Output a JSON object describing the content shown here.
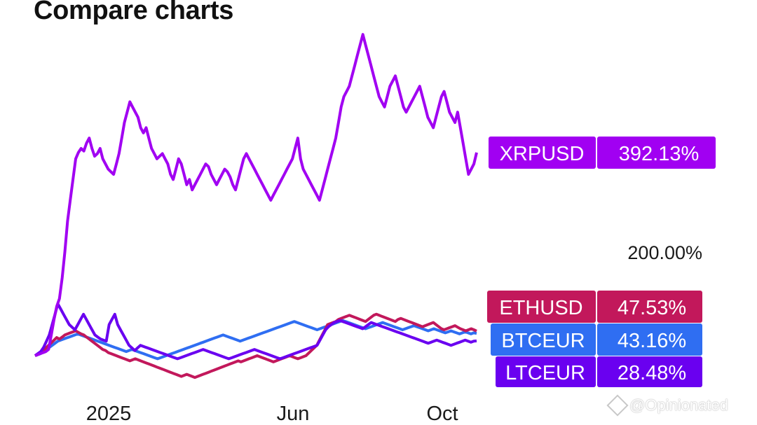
{
  "header": {
    "title": "Compare charts"
  },
  "watermark": {
    "text": "@Opinionated"
  },
  "chart_data": {
    "type": "line",
    "title": "Compare charts",
    "x_ticks": [
      "2025",
      "Jun",
      "Oct"
    ],
    "gridline_label": "200.00%",
    "ylabel": "",
    "xlabel": "",
    "series": [
      {
        "name": "XRPUSD",
        "last_label": "392.13%",
        "color": "#a100f2",
        "values": [
          0,
          2,
          4,
          6,
          8,
          12,
          40,
          70,
          95,
          110,
          150,
          200,
          260,
          300,
          340,
          380,
          392,
          400,
          395,
          410,
          420,
          400,
          385,
          390,
          400,
          380,
          370,
          360,
          355,
          350,
          370,
          390,
          420,
          450,
          470,
          490,
          480,
          470,
          460,
          440,
          430,
          440,
          420,
          400,
          390,
          380,
          385,
          390,
          380,
          370,
          350,
          340,
          360,
          380,
          370,
          350,
          330,
          340,
          320,
          330,
          340,
          350,
          360,
          370,
          365,
          350,
          340,
          330,
          340,
          350,
          360,
          355,
          345,
          330,
          320,
          340,
          360,
          380,
          390,
          380,
          370,
          360,
          350,
          340,
          330,
          320,
          310,
          300,
          310,
          320,
          330,
          340,
          350,
          360,
          370,
          380,
          400,
          420,
          380,
          360,
          350,
          340,
          330,
          320,
          310,
          300,
          320,
          340,
          360,
          380,
          400,
          420,
          450,
          480,
          500,
          510,
          520,
          540,
          560,
          580,
          600,
          620,
          600,
          580,
          560,
          540,
          520,
          500,
          490,
          480,
          500,
          520,
          530,
          540,
          520,
          500,
          480,
          470,
          480,
          490,
          500,
          510,
          520,
          500,
          480,
          460,
          450,
          440,
          460,
          480,
          500,
          510,
          490,
          470,
          460,
          450,
          470,
          440,
          410,
          380,
          350,
          360,
          370,
          392
        ]
      },
      {
        "name": "ETHUSD",
        "last_label": "47.53%",
        "color": "#c2185b",
        "values": [
          0,
          2,
          5,
          10,
          15,
          20,
          25,
          30,
          35,
          32,
          36,
          40,
          42,
          44,
          46,
          48,
          45,
          42,
          40,
          36,
          32,
          28,
          24,
          20,
          16,
          12,
          10,
          6,
          4,
          2,
          0,
          -2,
          -4,
          -6,
          -8,
          -10,
          -8,
          -6,
          -8,
          -10,
          -12,
          -14,
          -16,
          -18,
          -20,
          -22,
          -24,
          -26,
          -28,
          -30,
          -32,
          -34,
          -36,
          -38,
          -40,
          -38,
          -36,
          -38,
          -40,
          -42,
          -40,
          -38,
          -36,
          -34,
          -32,
          -30,
          -28,
          -26,
          -24,
          -22,
          -20,
          -18,
          -16,
          -14,
          -12,
          -10,
          -12,
          -10,
          -8,
          -6,
          -4,
          -2,
          0,
          -2,
          -4,
          -6,
          -8,
          -10,
          -12,
          -10,
          -8,
          -6,
          -4,
          -2,
          0,
          -2,
          -4,
          -6,
          -4,
          -2,
          0,
          5,
          10,
          15,
          20,
          30,
          40,
          50,
          60,
          62,
          64,
          66,
          70,
          72,
          74,
          76,
          78,
          76,
          74,
          72,
          70,
          68,
          66,
          70,
          74,
          78,
          80,
          78,
          76,
          74,
          72,
          70,
          68,
          66,
          70,
          72,
          70,
          68,
          66,
          64,
          62,
          60,
          58,
          56,
          58,
          60,
          62,
          64,
          60,
          56,
          52,
          50,
          52,
          54,
          56,
          58,
          55,
          52,
          50,
          48,
          50,
          52,
          50,
          47.53
        ]
      },
      {
        "name": "BTCEUR",
        "last_label": "43.16%",
        "color": "#2f6ef2",
        "values": [
          0,
          2,
          4,
          8,
          12,
          16,
          20,
          24,
          28,
          30,
          32,
          34,
          36,
          38,
          40,
          42,
          40,
          38,
          36,
          34,
          32,
          30,
          28,
          26,
          24,
          22,
          20,
          18,
          16,
          14,
          12,
          10,
          8,
          10,
          12,
          10,
          8,
          6,
          4,
          2,
          0,
          -2,
          -4,
          -6,
          -4,
          -2,
          0,
          2,
          4,
          6,
          8,
          10,
          12,
          14,
          16,
          18,
          20,
          22,
          24,
          26,
          28,
          30,
          32,
          34,
          36,
          38,
          40,
          38,
          36,
          34,
          32,
          30,
          28,
          30,
          32,
          34,
          36,
          38,
          40,
          42,
          44,
          46,
          48,
          50,
          52,
          54,
          56,
          58,
          60,
          62,
          64,
          66,
          64,
          62,
          60,
          58,
          56,
          54,
          52,
          50,
          52,
          54,
          56,
          58,
          60,
          62,
          64,
          66,
          68,
          66,
          64,
          62,
          60,
          58,
          56,
          54,
          52,
          54,
          56,
          58,
          60,
          62,
          64,
          62,
          60,
          58,
          56,
          54,
          52,
          50,
          52,
          54,
          56,
          58,
          56,
          54,
          52,
          50,
          48,
          50,
          52,
          50,
          48,
          46,
          44,
          46,
          48,
          46,
          44,
          42,
          44,
          46,
          44,
          42,
          44,
          43.16
        ]
      },
      {
        "name": "LTCEUR",
        "last_label": "28.48%",
        "color": "#6a00f0",
        "values": [
          0,
          4,
          8,
          16,
          28,
          40,
          60,
          80,
          100,
          90,
          80,
          70,
          60,
          55,
          50,
          60,
          70,
          80,
          70,
          60,
          50,
          40,
          36,
          32,
          30,
          28,
          60,
          70,
          80,
          60,
          50,
          40,
          30,
          20,
          15,
          10,
          15,
          20,
          18,
          16,
          14,
          12,
          10,
          8,
          6,
          4,
          2,
          0,
          -2,
          -4,
          -6,
          -4,
          -2,
          0,
          2,
          4,
          6,
          8,
          10,
          12,
          10,
          8,
          6,
          4,
          2,
          0,
          -2,
          -4,
          -6,
          -4,
          -2,
          0,
          2,
          4,
          6,
          8,
          10,
          12,
          10,
          8,
          6,
          4,
          2,
          0,
          -2,
          -4,
          -6,
          -4,
          -2,
          0,
          2,
          4,
          6,
          8,
          10,
          12,
          14,
          16,
          18,
          20,
          30,
          40,
          50,
          56,
          60,
          64,
          66,
          68,
          66,
          64,
          62,
          60,
          58,
          56,
          54,
          52,
          56,
          60,
          64,
          62,
          60,
          58,
          56,
          54,
          52,
          50,
          48,
          46,
          44,
          42,
          40,
          38,
          36,
          34,
          32,
          30,
          28,
          26,
          24,
          26,
          28,
          30,
          28,
          26,
          24,
          22,
          20,
          22,
          24,
          26,
          28,
          30,
          28,
          26,
          28,
          28.48
        ]
      }
    ]
  }
}
